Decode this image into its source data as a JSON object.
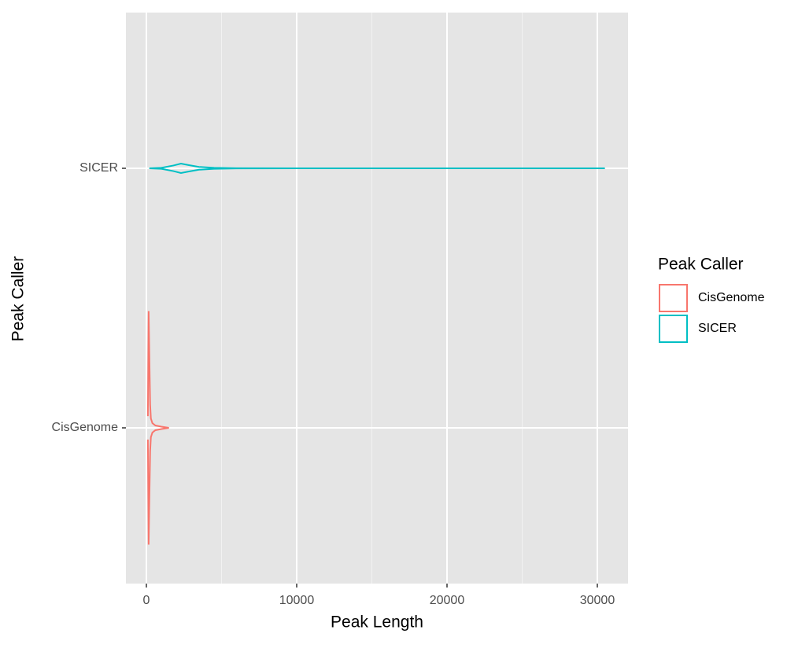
{
  "chart_data": {
    "type": "violin",
    "xlabel": "Peak Length",
    "ylabel": "Peak Caller",
    "legend_title": "Peak Caller",
    "categories": [
      "CisGenome",
      "SICER"
    ],
    "series": [
      {
        "name": "CisGenome",
        "color": "#f8766d",
        "x": [
          100,
          150,
          200,
          250,
          300,
          400,
          600,
          800,
          1000,
          1500
        ],
        "density": [
          0.001,
          0.01,
          0.006,
          0.002,
          0.0008,
          0.0004,
          0.0002,
          0.00015,
          0.0001,
          0
        ]
      },
      {
        "name": "SICER",
        "color": "#00bfc4",
        "x": [
          200,
          1000,
          1800,
          2300,
          2800,
          3500,
          4500,
          6000,
          10000,
          20000,
          30500
        ],
        "density": [
          0,
          4e-05,
          0.00024,
          0.0004,
          0.00028,
          0.00012,
          4e-05,
          1.2e-05,
          2e-06,
          1e-06,
          0
        ]
      }
    ],
    "xlim": [
      -1361,
      32042
    ],
    "xticks": [
      0,
      10000,
      20000,
      30000
    ],
    "xminorticks": [
      5000,
      15000,
      25000
    ],
    "grid": true,
    "legend": "right"
  }
}
